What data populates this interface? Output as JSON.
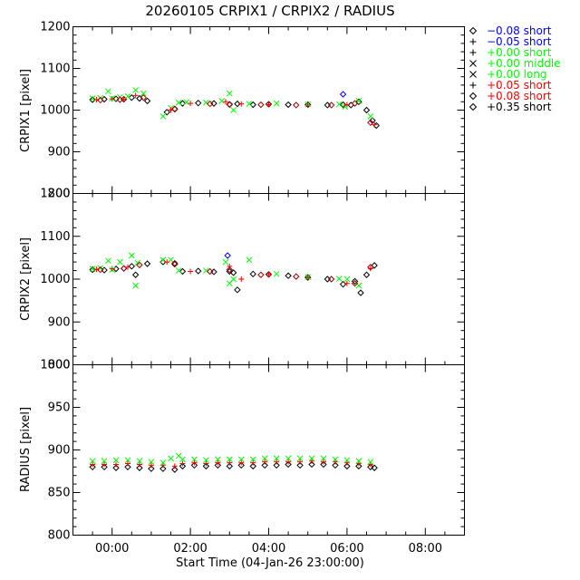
{
  "title": "20260105 CRPIX1 / CRPIX2 / RADIUS",
  "xlabel": "Start Time (04-Jan-26 23:00:00)",
  "x_ticks": [
    "00:00",
    "02:00",
    "04:00",
    "06:00",
    "08:00"
  ],
  "colors": {
    "black": "#000000",
    "blue": "#0000ff",
    "green": "#00ff00",
    "red": "#ff0000",
    "darkred": "#aa0000"
  },
  "legend": {
    "placement": "top-right outside",
    "entries": [
      {
        "symbol": "diamond",
        "color": "#0000ff",
        "label": "−0.08 short"
      },
      {
        "symbol": "plus",
        "color": "#0000ff",
        "label": "−0.05 short"
      },
      {
        "symbol": "plus",
        "color": "#00ff00",
        "label": "+0.00 short"
      },
      {
        "symbol": "cross",
        "color": "#00ff00",
        "label": "+0.00 middle"
      },
      {
        "symbol": "cross",
        "color": "#00ff00",
        "label": "+0.00 long"
      },
      {
        "symbol": "plus",
        "color": "#ff0000",
        "label": "+0.05 short"
      },
      {
        "symbol": "diamond",
        "color": "#ff0000",
        "label": "+0.08 short"
      },
      {
        "symbol": "diamond",
        "color": "#000000",
        "label": "+0.35 short"
      }
    ]
  },
  "chart_data": [
    {
      "type": "scatter",
      "ylabel": "CRPIX1 [pixel]",
      "xlim": [
        -1,
        9
      ],
      "ylim": [
        800,
        1200
      ],
      "y_ticks": [
        "800",
        "900",
        "1000",
        "1100",
        "1200"
      ],
      "x_units": "hours after 04-Jan-26 23:00:00",
      "series": [
        {
          "symbol": "diamond",
          "color": "#000000",
          "x": [
            -0.5,
            -0.2,
            0.1,
            0.3,
            0.5,
            0.7,
            0.9,
            1.4,
            1.6,
            1.8,
            2.2,
            2.6,
            3.0,
            3.2,
            3.6,
            4.0,
            4.5,
            5.0,
            5.5,
            5.9,
            6.1,
            6.3,
            6.5,
            6.65,
            6.75
          ],
          "y": [
            1025,
            1026,
            1027,
            1026,
            1030,
            1028,
            1022,
            995,
            1003,
            1016,
            1017,
            1016,
            1014,
            1015,
            1013,
            1014,
            1013,
            1013,
            1012,
            1013,
            1012,
            1020,
            1000,
            975,
            963
          ]
        },
        {
          "symbol": "cross",
          "color": "#00ff00",
          "x": [
            -0.5,
            -0.3,
            -0.1,
            0.0,
            0.2,
            0.4,
            0.6,
            0.8,
            1.3,
            1.5,
            1.7,
            1.9,
            2.4,
            2.8,
            3.0,
            3.1,
            3.5,
            4.2,
            5.0,
            5.8,
            5.95,
            6.3,
            6.6
          ],
          "y": [
            1028,
            1029,
            1045,
            1028,
            1031,
            1033,
            1048,
            1040,
            985,
            1005,
            1018,
            1019,
            1018,
            1022,
            1040,
            1000,
            1015,
            1016,
            1014,
            1014,
            1008,
            1022,
            985
          ]
        },
        {
          "symbol": "plus",
          "color": "#ff0000",
          "x": [
            -0.4,
            0.0,
            0.3,
            0.6,
            1.5,
            2.0,
            2.9,
            3.3,
            4.0,
            5.0,
            6.0,
            6.7
          ],
          "y": [
            1025,
            1027,
            1026,
            1035,
            1000,
            1016,
            1020,
            1015,
            1013,
            1012,
            1013,
            965
          ]
        },
        {
          "symbol": "diamond",
          "color": "#aa0000",
          "x": [
            -0.3,
            0.2,
            0.8,
            1.6,
            2.5,
            3.0,
            3.8,
            4.7,
            5.6,
            6.2,
            6.6
          ],
          "y": [
            1024,
            1025,
            1030,
            1002,
            1015,
            1013,
            1013,
            1012,
            1012,
            1016,
            970
          ]
        },
        {
          "symbol": "diamond",
          "color": "#0000ff",
          "x": [
            5.9
          ],
          "y": [
            1038
          ]
        }
      ]
    },
    {
      "type": "scatter",
      "ylabel": "CRPIX2 [pixel]",
      "xlim": [
        -1,
        9
      ],
      "ylim": [
        800,
        1200
      ],
      "y_ticks": [
        "800",
        "900",
        "1000",
        "1100",
        "1200"
      ],
      "x_units": "hours after 04-Jan-26 23:00:00",
      "series": [
        {
          "symbol": "diamond",
          "color": "#000000",
          "x": [
            -0.5,
            -0.2,
            0.1,
            0.3,
            0.5,
            0.6,
            0.9,
            1.3,
            1.6,
            1.8,
            2.2,
            2.6,
            3.0,
            3.1,
            3.2,
            3.6,
            4.0,
            4.5,
            5.0,
            5.5,
            5.9,
            6.2,
            6.35,
            6.5,
            6.7
          ],
          "y": [
            1022,
            1021,
            1024,
            1025,
            1030,
            1010,
            1036,
            1040,
            1035,
            1018,
            1019,
            1017,
            1018,
            1015,
            975,
            1012,
            1011,
            1008,
            1004,
            1000,
            988,
            995,
            968,
            1010,
            1032
          ]
        },
        {
          "symbol": "cross",
          "color": "#00ff00",
          "x": [
            -0.5,
            -0.3,
            -0.1,
            0.0,
            0.2,
            0.5,
            0.6,
            0.65,
            1.3,
            1.5,
            1.7,
            2.4,
            2.9,
            3.0,
            3.1,
            3.5,
            4.2,
            5.0,
            5.8,
            6.0,
            6.3
          ],
          "y": [
            1024,
            1026,
            1043,
            1022,
            1040,
            1055,
            985,
            1038,
            1045,
            1045,
            1020,
            1020,
            1040,
            990,
            1000,
            1045,
            1012,
            1005,
            1001,
            1000,
            985
          ]
        },
        {
          "symbol": "plus",
          "color": "#ff0000",
          "x": [
            -0.4,
            0.0,
            0.4,
            1.4,
            2.0,
            3.0,
            3.3,
            4.0,
            5.0,
            6.0,
            6.6
          ],
          "y": [
            1023,
            1024,
            1028,
            1040,
            1018,
            1030,
            1000,
            1011,
            1004,
            990,
            1025
          ]
        },
        {
          "symbol": "diamond",
          "color": "#aa0000",
          "x": [
            -0.3,
            0.3,
            0.7,
            1.6,
            2.5,
            3.0,
            3.8,
            4.7,
            5.6,
            6.2,
            6.6
          ],
          "y": [
            1022,
            1025,
            1033,
            1037,
            1018,
            1022,
            1010,
            1006,
            1000,
            990,
            1028
          ]
        },
        {
          "symbol": "diamond",
          "color": "#0000ff",
          "x": [
            2.95
          ],
          "y": [
            1055
          ]
        }
      ]
    },
    {
      "type": "scatter",
      "ylabel": "RADIUS [pixel]",
      "xlim": [
        -1,
        9
      ],
      "ylim": [
        800,
        1000
      ],
      "y_ticks": [
        "800",
        "850",
        "900",
        "950",
        "1000"
      ],
      "x_units": "hours after 04-Jan-26 23:00:00",
      "series": [
        {
          "symbol": "diamond",
          "color": "#000000",
          "x": [
            -0.5,
            -0.2,
            0.1,
            0.4,
            0.7,
            1.0,
            1.3,
            1.6,
            1.8,
            2.1,
            2.4,
            2.7,
            3.0,
            3.3,
            3.6,
            3.9,
            4.2,
            4.5,
            4.8,
            5.1,
            5.4,
            5.7,
            6.0,
            6.3,
            6.6,
            6.7
          ],
          "y": [
            880,
            880,
            879,
            880,
            879,
            878,
            878,
            877,
            881,
            882,
            881,
            882,
            881,
            882,
            881,
            882,
            882,
            883,
            882,
            883,
            883,
            882,
            881,
            881,
            880,
            879
          ]
        },
        {
          "symbol": "plus",
          "color": "#ff0000",
          "x": [
            -0.5,
            -0.2,
            0.1,
            0.4,
            0.7,
            1.0,
            1.3,
            1.6,
            1.8,
            2.1,
            2.4,
            2.7,
            3.0,
            3.3,
            3.6,
            3.9,
            4.2,
            4.5,
            4.8,
            5.1,
            5.4,
            5.7,
            6.0,
            6.3,
            6.6
          ],
          "y": [
            883,
            883,
            883,
            884,
            883,
            882,
            882,
            881,
            884,
            885,
            884,
            885,
            885,
            885,
            885,
            886,
            886,
            886,
            886,
            887,
            886,
            886,
            885,
            884,
            883
          ]
        },
        {
          "symbol": "cross",
          "color": "#00ff00",
          "x": [
            -0.5,
            -0.2,
            0.1,
            0.4,
            0.7,
            1.0,
            1.3,
            1.5,
            1.7,
            1.8,
            2.1,
            2.4,
            2.7,
            3.0,
            3.3,
            3.6,
            3.9,
            4.2,
            4.5,
            4.8,
            5.1,
            5.4,
            5.7,
            6.0,
            6.3,
            6.6
          ],
          "y": [
            887,
            887,
            888,
            888,
            887,
            886,
            885,
            890,
            893,
            889,
            889,
            888,
            889,
            889,
            889,
            889,
            890,
            890,
            890,
            890,
            890,
            890,
            889,
            888,
            887,
            886
          ]
        }
      ]
    }
  ]
}
